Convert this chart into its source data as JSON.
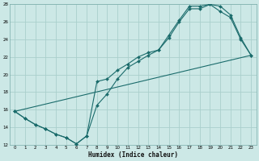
{
  "title": "",
  "xlabel": "Humidex (Indice chaleur)",
  "ylabel": "",
  "bg_color": "#cce8e6",
  "grid_color": "#aacfcc",
  "line_color": "#1a6b6b",
  "xlim": [
    -0.5,
    23.5
  ],
  "ylim": [
    12,
    28
  ],
  "xticks": [
    0,
    1,
    2,
    3,
    4,
    5,
    6,
    7,
    8,
    9,
    10,
    11,
    12,
    13,
    14,
    15,
    16,
    17,
    18,
    19,
    20,
    21,
    22,
    23
  ],
  "yticks": [
    12,
    14,
    16,
    18,
    20,
    22,
    24,
    26,
    28
  ],
  "line1_x": [
    0,
    1,
    2,
    3,
    4,
    5,
    6,
    7,
    8,
    9,
    10,
    11,
    12,
    13,
    14,
    15,
    16,
    17,
    18,
    19,
    20,
    21,
    22,
    23
  ],
  "line1_y": [
    15.8,
    15.0,
    14.3,
    13.8,
    13.2,
    12.8,
    12.1,
    13.0,
    19.2,
    19.5,
    20.5,
    21.2,
    22.0,
    22.5,
    22.8,
    24.5,
    26.2,
    27.8,
    27.8,
    28.0,
    27.2,
    26.5,
    24.0,
    22.2
  ],
  "line2_x": [
    0,
    1,
    2,
    3,
    4,
    5,
    6,
    7,
    8,
    9,
    10,
    11,
    12,
    13,
    14,
    15,
    16,
    17,
    18,
    19,
    20,
    21,
    22,
    23
  ],
  "line2_y": [
    15.8,
    15.0,
    14.3,
    13.8,
    13.2,
    12.8,
    12.1,
    13.0,
    16.5,
    17.8,
    19.5,
    20.8,
    21.5,
    22.2,
    22.8,
    24.2,
    26.0,
    27.5,
    27.5,
    28.0,
    27.8,
    26.8,
    24.2,
    22.2
  ],
  "line3_x": [
    0,
    23
  ],
  "line3_y": [
    15.8,
    22.2
  ]
}
